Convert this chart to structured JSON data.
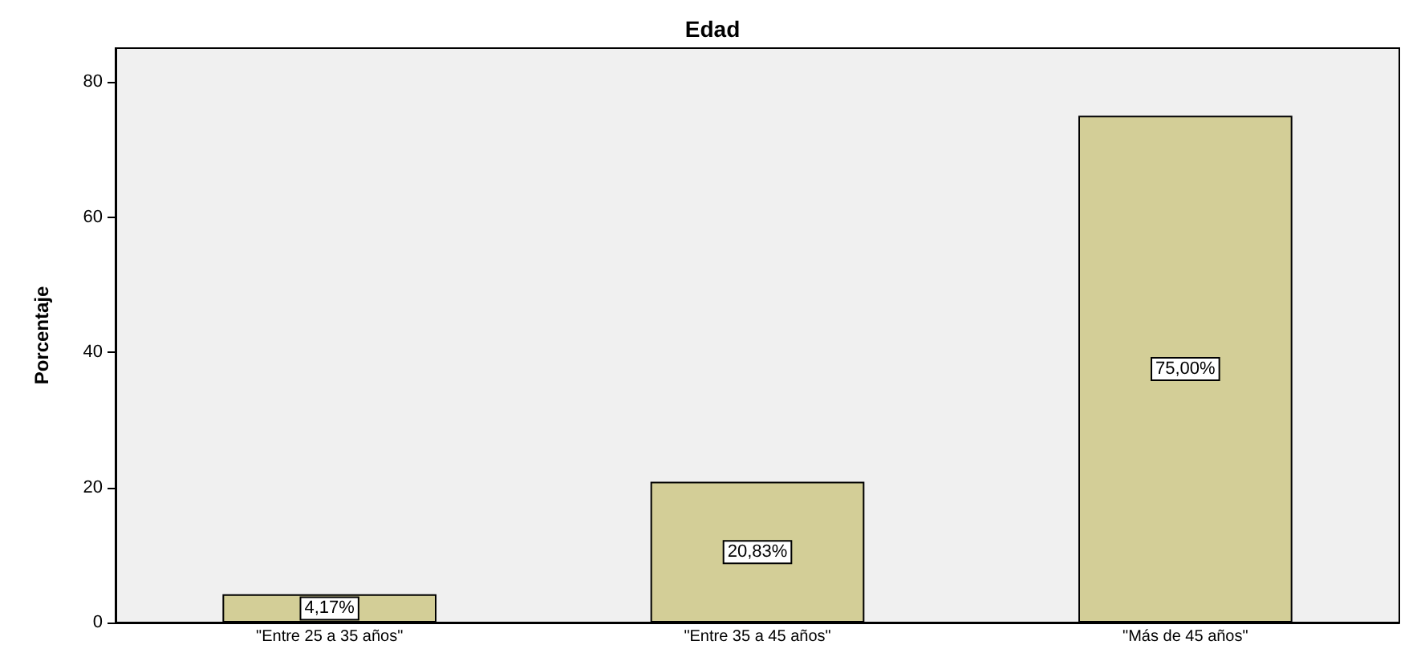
{
  "chart_data": {
    "type": "bar",
    "title": "Edad",
    "ylabel": "Porcentaje",
    "categories": [
      "\"Entre 25 a 35 años\"",
      "\"Entre 35 a 45 años\"",
      "\"Más de 45 años\""
    ],
    "values": [
      4.17,
      20.83,
      75.0
    ],
    "color": "#d3ce97",
    "value_labels": [
      "4,17%",
      "20,83%",
      "75,00%"
    ],
    "ylim": [
      0,
      85
    ],
    "yticks": [
      0,
      20,
      40,
      60,
      80
    ],
    "grid": false
  }
}
